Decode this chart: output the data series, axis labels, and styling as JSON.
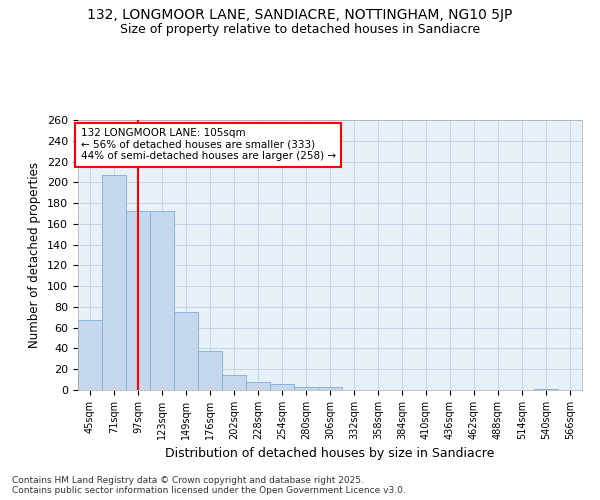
{
  "title1": "132, LONGMOOR LANE, SANDIACRE, NOTTINGHAM, NG10 5JP",
  "title2": "Size of property relative to detached houses in Sandiacre",
  "xlabel": "Distribution of detached houses by size in Sandiacre",
  "ylabel": "Number of detached properties",
  "bin_labels": [
    "45sqm",
    "71sqm",
    "97sqm",
    "123sqm",
    "149sqm",
    "176sqm",
    "202sqm",
    "228sqm",
    "254sqm",
    "280sqm",
    "306sqm",
    "332sqm",
    "358sqm",
    "384sqm",
    "410sqm",
    "436sqm",
    "462sqm",
    "488sqm",
    "514sqm",
    "540sqm",
    "566sqm"
  ],
  "bar_values": [
    67,
    207,
    172,
    172,
    75,
    38,
    14,
    8,
    6,
    3,
    3,
    0,
    0,
    0,
    0,
    0,
    0,
    0,
    0,
    1,
    0
  ],
  "bar_color": "#c5d8ee",
  "bar_edge_color": "#7aade0",
  "grid_color": "#c0d4e8",
  "bg_color": "#e8f0f8",
  "vline_x": 2.0,
  "vline_color": "red",
  "annotation_text": "132 LONGMOOR LANE: 105sqm\n← 56% of detached houses are smaller (333)\n44% of semi-detached houses are larger (258) →",
  "annotation_box_color": "white",
  "annotation_box_edge": "red",
  "footer_text": "Contains HM Land Registry data © Crown copyright and database right 2025.\nContains public sector information licensed under the Open Government Licence v3.0.",
  "ylim": [
    0,
    260
  ],
  "yticks": [
    0,
    20,
    40,
    60,
    80,
    100,
    120,
    140,
    160,
    180,
    200,
    220,
    240,
    260
  ]
}
